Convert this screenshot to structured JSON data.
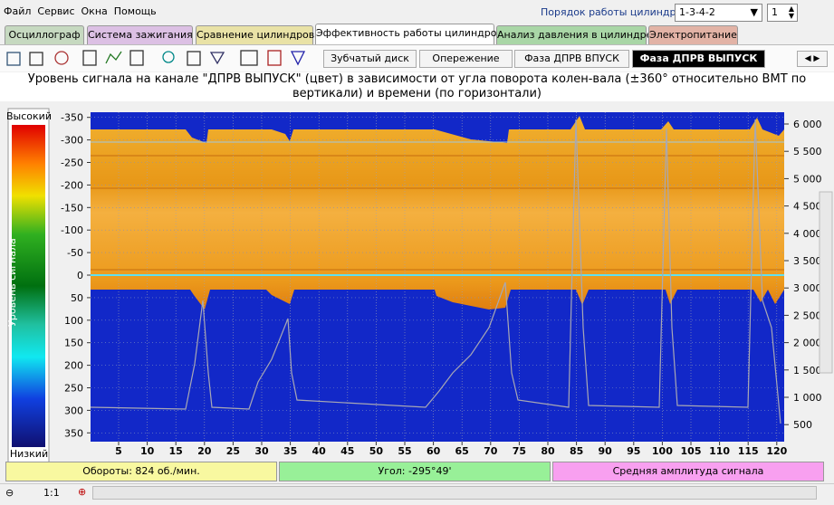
{
  "header": {
    "menu": [
      "Файл",
      "Сервис",
      "Окна",
      "Помощь"
    ],
    "cylinder_order_label": "Порядок работы цилиндров",
    "cylinder_order": "1-3-4-2",
    "cylinder_number": "1"
  },
  "tabs": [
    "Осциллограф",
    "Система зажигания",
    "Сравнение цилиндров",
    "Эффективность работы цилиндров",
    "Анализ давления в цилиндре",
    "Электропитание"
  ],
  "subtabs": [
    "Зубчатый диск",
    "Опережение",
    "Фаза ДПРВ ВПУСК",
    "Фаза ДПРВ ВЫПУСК"
  ],
  "chart": {
    "title": "Уровень сигнала на канале \"ДПРВ ВЫПУСК\" (цвет) в зависимости от угла поворота колен-вала (±360° относительно ВМТ по вертикали) и времени (по горизонтали)",
    "legend_high": "Высокий",
    "legend_low": "Низкий",
    "legend_label": "Уровень сигнала",
    "yticks": [
      -350,
      -300,
      -250,
      -200,
      -150,
      -100,
      -50,
      0,
      50,
      100,
      150,
      200,
      250,
      300,
      350
    ],
    "xticks": [
      5,
      10,
      15,
      20,
      25,
      30,
      35,
      40,
      45,
      50,
      55,
      60,
      65,
      70,
      75,
      80,
      85,
      90,
      95,
      100,
      105,
      110,
      115,
      120
    ],
    "y2ticks": [
      "6 000",
      "5 500",
      "5 000",
      "4 500",
      "4 000",
      "3 500",
      "3 000",
      "2 500",
      "2 000",
      "1 500",
      "1 000",
      "500"
    ]
  },
  "status": {
    "rpm": "Обороты: 824 об./мин.",
    "angle": "Угол:  -295°49'",
    "amplitude": "Средняя амплитуда сигнала"
  },
  "footer": {
    "zoom": "1:1"
  }
}
